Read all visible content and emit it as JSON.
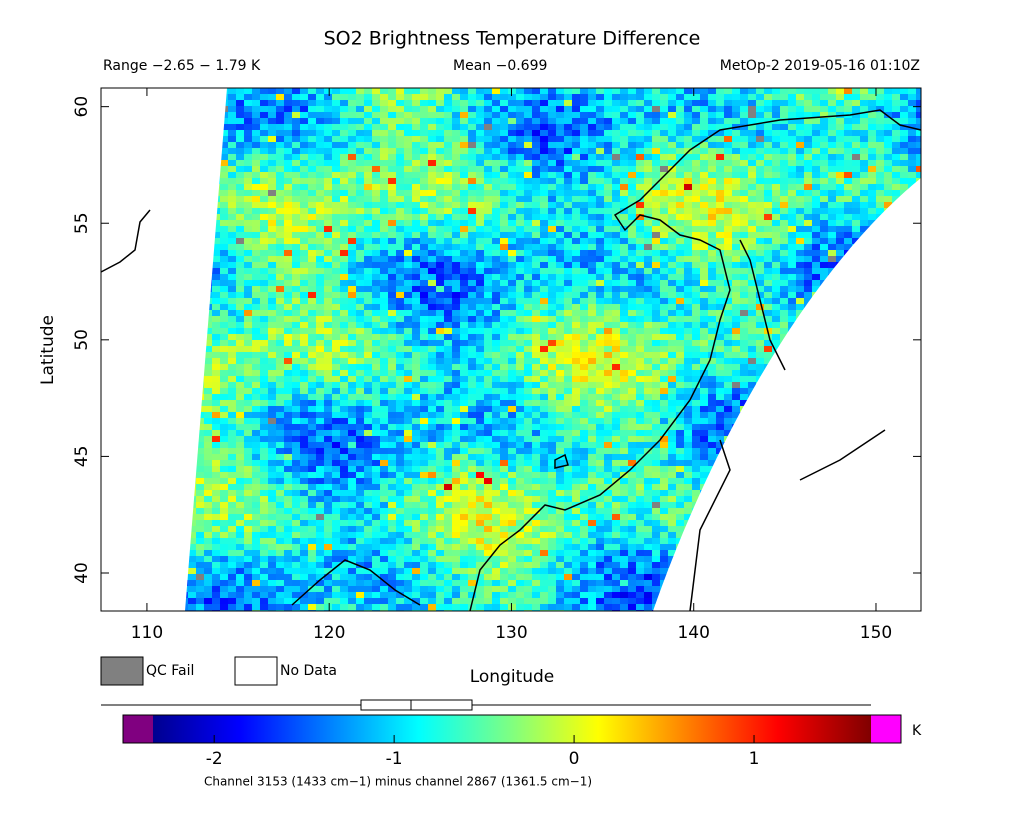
{
  "map": {
    "title": "SO2 Brightness Temperature Difference",
    "range_label": "Range −2.65 − 1.79 K",
    "mean_label": "Mean −0.699",
    "source_label": "MetOp-2 2019-05-16 01:10Z",
    "xlabel": "Longitude",
    "ylabel": "Latitude",
    "xlim": [
      107.48,
      152.47
    ],
    "xticks": [
      110,
      120,
      130,
      140,
      150
    ],
    "ylim": [
      38.37,
      60.8
    ],
    "yticks": [
      40,
      45,
      50,
      55,
      60
    ],
    "legend": [
      {
        "label": "QC Fail",
        "color": "#808080"
      },
      {
        "label": "No Data",
        "color": "#ffffff"
      }
    ],
    "colorbar": {
      "lim": [
        -2.34,
        1.65
      ],
      "ticks": [
        -2,
        -1,
        0,
        1
      ],
      "unit": "K",
      "caption": "Channel 3153 (1433 cm−1) minus channel 2867 (1361.5 cm−1)"
    }
  }
}
